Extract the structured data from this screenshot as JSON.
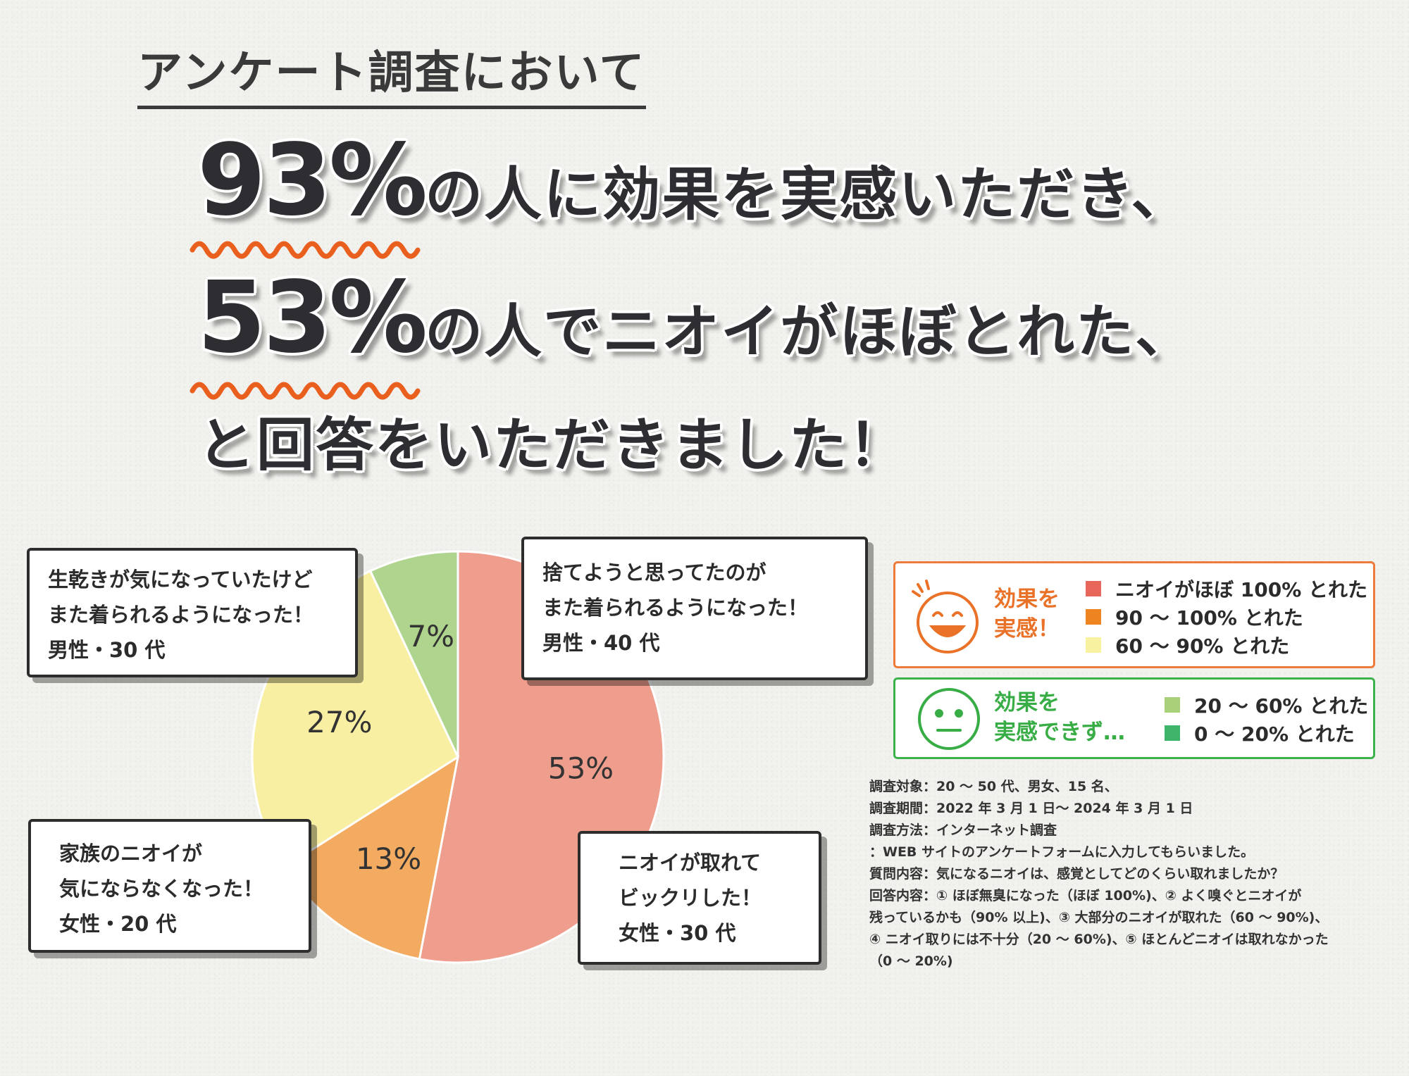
{
  "survey_title": "アンケート調査において",
  "headline": {
    "line1_big": "93%",
    "line1_rest": "の人に効果を実感いただき、",
    "line2_big": "53%",
    "line2_rest": "の人でニオイがほぼとれた、",
    "line3": "と回答をいただきました！"
  },
  "chart_data": {
    "type": "pie",
    "start": "top",
    "direction": "clockwise",
    "slices": [
      {
        "label": "53%",
        "value": 53,
        "color": "#ef9d8c"
      },
      {
        "label": "13%",
        "value": 13,
        "color": "#f2ab60"
      },
      {
        "label": "27%",
        "value": 27,
        "color": "#f8efa2"
      },
      {
        "label": "7%",
        "value": 7,
        "color": "#aed48d"
      }
    ]
  },
  "comments": {
    "c1": {
      "lines": [
        "生乾きが気になっていたけど",
        "また着られるようになった！"
      ],
      "person": "男性・30 代"
    },
    "c2": {
      "lines": [
        "捨てようと思ってたのが",
        "また着られるようになった！"
      ],
      "person": "男性・40 代"
    },
    "c3": {
      "lines": [
        "家族のニオイが",
        "気にならなくなった！"
      ],
      "person": "女性・20 代"
    },
    "c4": {
      "lines": [
        "ニオイが取れて",
        "ビックリした！"
      ],
      "person": "女性・30 代"
    }
  },
  "legend": {
    "effective": {
      "heading": [
        "効果を",
        "実感！"
      ],
      "accent": "#ea7228",
      "icon": "smile-face-icon",
      "items": [
        {
          "label": "ニオイがほぼ 100% とれた",
          "color": "#e8665a"
        },
        {
          "label": "90 〜 100% とれた",
          "color": "#ee8420"
        },
        {
          "label": "60 〜 90% とれた",
          "color": "#f8f2a0"
        }
      ]
    },
    "not_effective": {
      "heading": [
        "効果を",
        "実感できず…"
      ],
      "accent": "#38ad46",
      "icon": "neutral-face-icon",
      "items": [
        {
          "label": "20 〜 60% とれた",
          "color": "#a9d17a"
        },
        {
          "label": "0 〜 20% とれた",
          "color": "#3fb56b"
        }
      ]
    }
  },
  "notes": [
    "調査対象：20 〜 50 代、男女、15 名、",
    "調査期間：2022 年 3 月 1 日〜 2024 年 3 月 1 日",
    "調査方法：インターネット調査",
    "：WEB サイトのアンケートフォームに入力してもらいました。",
    "質問内容：気になるニオイは、感覚としてどのくらい取れましたか？",
    "回答内容：① ほぼ無臭になった（ほぼ 100%)、② よく嗅ぐとニオイが",
    "残っているかも（90% 以上)、③ 大部分のニオイが取れた（60 〜 90%)、",
    "④ ニオイ取りには不十分（20 〜 60%)、⑤ ほとんどニオイは取れなかった",
    "（0 〜 20%)"
  ]
}
